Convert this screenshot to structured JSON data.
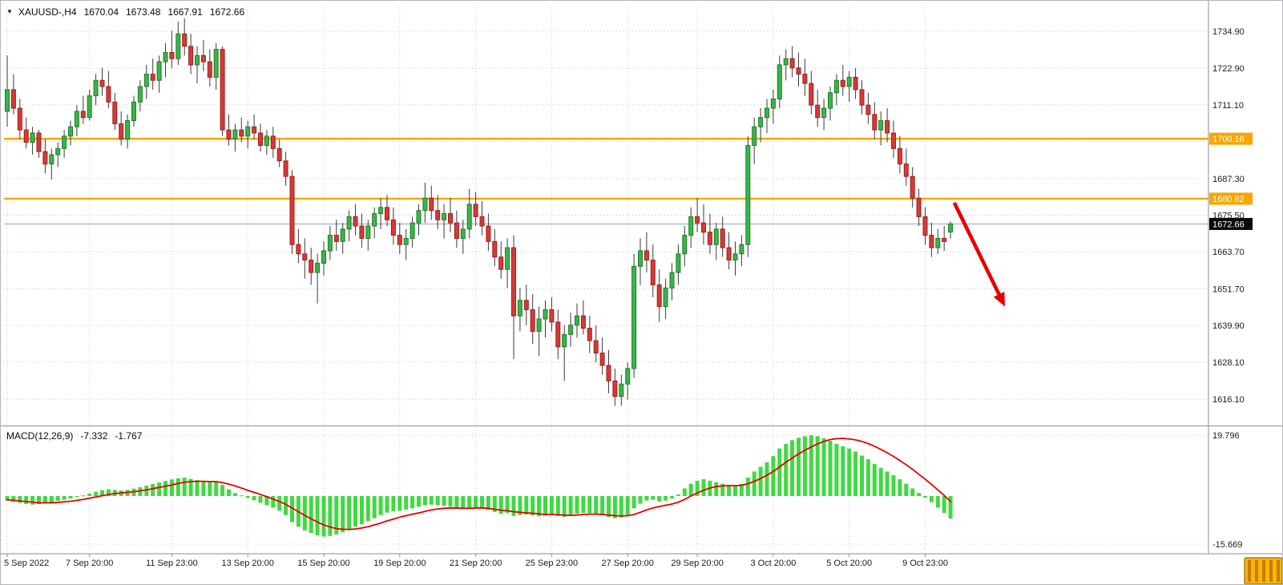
{
  "header": {
    "symbol": "XAUUSD-,H4",
    "open": "1670.04",
    "high": "1673.48",
    "low": "1667.91",
    "close": "1672.66"
  },
  "macd_panel": {
    "title": "MACD(12,26,9)",
    "macd_value": "-7.332",
    "signal_value": "-1.767",
    "axis_labels": [
      {
        "text": "19.796",
        "value": 19.796
      },
      {
        "text": "-15.669",
        "value": -15.669
      }
    ]
  },
  "price_axis": {
    "ticks": [
      {
        "text": "1734.90",
        "value": 1734.9
      },
      {
        "text": "1722.90",
        "value": 1722.9
      },
      {
        "text": "1711.10",
        "value": 1711.1
      },
      {
        "text": "1687.30",
        "value": 1687.3
      },
      {
        "text": "1675.50",
        "value": 1675.5
      },
      {
        "text": "1663.70",
        "value": 1663.7
      },
      {
        "text": "1651.70",
        "value": 1651.7
      },
      {
        "text": "1639.90",
        "value": 1639.9
      },
      {
        "text": "1628.10",
        "value": 1628.1
      },
      {
        "text": "1616.10",
        "value": 1616.1
      }
    ]
  },
  "levels": [
    {
      "label": "1700.16",
      "value": 1700.16,
      "color": "#f7a600"
    },
    {
      "label": "1680.82",
      "value": 1680.82,
      "color": "#f7a600"
    }
  ],
  "bid": {
    "label": "1672.66",
    "value": 1672.66
  },
  "time_axis": [
    {
      "label": "5 Sep 2022",
      "index": 0
    },
    {
      "label": "7 Sep 20:00",
      "index": 13
    },
    {
      "label": "11 Sep 23:00",
      "index": 26
    },
    {
      "label": "13 Sep 20:00",
      "index": 38
    },
    {
      "label": "15 Sep 20:00",
      "index": 50
    },
    {
      "label": "19 Sep 20:00",
      "index": 62
    },
    {
      "label": "21 Sep 20:00",
      "index": 74
    },
    {
      "label": "25 Sep 23:00",
      "index": 86
    },
    {
      "label": "27 Sep 20:00",
      "index": 98
    },
    {
      "label": "29 Sep 20:00",
      "index": 109
    },
    {
      "label": "3 Oct 20:00",
      "index": 121
    },
    {
      "label": "5 Oct 20:00",
      "index": 133
    },
    {
      "label": "9 Oct 23:00",
      "index": 145
    }
  ],
  "arrow": {
    "from": {
      "index": 149.6,
      "price": 1679.5
    },
    "to": {
      "index": 157.6,
      "price": 1646.0
    },
    "color": "#e60000"
  },
  "colors": {
    "bull": "#3bb54a",
    "bull_border": "#1d7c28",
    "bear": "#d63a35",
    "bear_border": "#9c201d",
    "wick": "#3a3a3a",
    "macd_bar": "#41d941",
    "macd_signal": "#e60000",
    "grid": "#c8c8d0",
    "separator": "#8e8e96",
    "axis_text": "#1a1a1a",
    "bid_line": "#9aa3b5",
    "tag_bg": "#0a0a0a",
    "level_orange": "#f7a600",
    "corner_widget": "#ffb400",
    "corner_widget_stripe": "#c07f00"
  },
  "chart_data": {
    "type": "candlestick_with_macd",
    "symbol": "XAUUSD-",
    "timeframe": "H4",
    "title": "XAUUSD-,H4 1670.04 1673.48 1667.91 1672.66",
    "ylim": [
      1607.8,
      1742.6
    ],
    "macd_ylim": [
      -17.8,
      21.9
    ],
    "grid": "dotted",
    "price_gridlines": [
      1734.9,
      1722.9,
      1711.1,
      1699.3,
      1687.3,
      1675.5,
      1663.7,
      1651.7,
      1639.9,
      1628.1,
      1616.1
    ],
    "ohlc": [
      [
        1709,
        1727,
        1704,
        1716
      ],
      [
        1716,
        1721,
        1708,
        1710
      ],
      [
        1710,
        1713,
        1700,
        1703
      ],
      [
        1703,
        1707,
        1697,
        1699
      ],
      [
        1699,
        1704,
        1695,
        1702
      ],
      [
        1702,
        1703,
        1694,
        1696
      ],
      [
        1696,
        1700,
        1689,
        1692
      ],
      [
        1692,
        1697,
        1687,
        1695
      ],
      [
        1695,
        1699,
        1691,
        1697
      ],
      [
        1697,
        1703,
        1694,
        1701
      ],
      [
        1701,
        1706,
        1698,
        1704
      ],
      [
        1704,
        1711,
        1701,
        1709
      ],
      [
        1709,
        1714,
        1705,
        1707
      ],
      [
        1707,
        1716,
        1706,
        1714
      ],
      [
        1714,
        1721,
        1711,
        1719
      ],
      [
        1719,
        1723,
        1714,
        1717
      ],
      [
        1717,
        1722,
        1710,
        1712
      ],
      [
        1712,
        1715,
        1703,
        1705
      ],
      [
        1705,
        1709,
        1698,
        1700
      ],
      [
        1700,
        1708,
        1697,
        1706
      ],
      [
        1706,
        1714,
        1704,
        1712
      ],
      [
        1712,
        1719,
        1709,
        1717
      ],
      [
        1717,
        1724,
        1713,
        1721
      ],
      [
        1721,
        1726,
        1716,
        1719
      ],
      [
        1719,
        1727,
        1715,
        1725
      ],
      [
        1725,
        1731,
        1720,
        1728
      ],
      [
        1728,
        1735,
        1723,
        1726
      ],
      [
        1726,
        1738,
        1724,
        1734
      ],
      [
        1734,
        1739,
        1727,
        1730
      ],
      [
        1730,
        1734,
        1721,
        1724
      ],
      [
        1724,
        1730,
        1718,
        1727
      ],
      [
        1727,
        1732,
        1722,
        1725
      ],
      [
        1725,
        1729,
        1717,
        1720
      ],
      [
        1720,
        1731,
        1716,
        1729
      ],
      [
        1729,
        1730,
        1701,
        1703
      ],
      [
        1703,
        1708,
        1698,
        1700
      ],
      [
        1700,
        1705,
        1696,
        1703
      ],
      [
        1703,
        1707,
        1699,
        1701
      ],
      [
        1701,
        1706,
        1697,
        1704
      ],
      [
        1704,
        1708,
        1700,
        1702
      ],
      [
        1702,
        1705,
        1696,
        1698
      ],
      [
        1698,
        1703,
        1695,
        1701
      ],
      [
        1701,
        1704,
        1694,
        1697
      ],
      [
        1697,
        1700,
        1691,
        1693
      ],
      [
        1693,
        1696,
        1685,
        1688
      ],
      [
        1688,
        1690,
        1663,
        1666
      ],
      [
        1666,
        1671,
        1660,
        1663
      ],
      [
        1663,
        1668,
        1655,
        1661
      ],
      [
        1661,
        1665,
        1653,
        1657
      ],
      [
        1657,
        1663,
        1647,
        1660
      ],
      [
        1660,
        1667,
        1656,
        1664
      ],
      [
        1664,
        1672,
        1661,
        1669
      ],
      [
        1669,
        1674,
        1664,
        1667
      ],
      [
        1667,
        1673,
        1663,
        1671
      ],
      [
        1671,
        1677,
        1667,
        1675
      ],
      [
        1675,
        1679,
        1669,
        1672
      ],
      [
        1672,
        1676,
        1665,
        1668
      ],
      [
        1668,
        1674,
        1664,
        1672
      ],
      [
        1672,
        1678,
        1668,
        1676
      ],
      [
        1676,
        1681,
        1671,
        1678
      ],
      [
        1678,
        1682,
        1672,
        1674
      ],
      [
        1674,
        1678,
        1666,
        1669
      ],
      [
        1669,
        1673,
        1663,
        1666
      ],
      [
        1666,
        1671,
        1661,
        1668
      ],
      [
        1668,
        1675,
        1665,
        1673
      ],
      [
        1673,
        1679,
        1669,
        1677
      ],
      [
        1677,
        1686,
        1673,
        1681
      ],
      [
        1681,
        1685,
        1674,
        1677
      ],
      [
        1677,
        1682,
        1671,
        1674
      ],
      [
        1674,
        1679,
        1668,
        1676
      ],
      [
        1676,
        1681,
        1670,
        1673
      ],
      [
        1673,
        1677,
        1665,
        1668
      ],
      [
        1668,
        1674,
        1663,
        1671
      ],
      [
        1671,
        1684,
        1668,
        1679
      ],
      [
        1679,
        1683,
        1672,
        1675
      ],
      [
        1675,
        1680,
        1669,
        1672
      ],
      [
        1672,
        1676,
        1664,
        1667
      ],
      [
        1667,
        1671,
        1659,
        1662
      ],
      [
        1662,
        1667,
        1655,
        1658
      ],
      [
        1658,
        1668,
        1652,
        1665
      ],
      [
        1665,
        1669,
        1629,
        1643
      ],
      [
        1643,
        1652,
        1638,
        1648
      ],
      [
        1648,
        1653,
        1640,
        1645
      ],
      [
        1645,
        1650,
        1634,
        1638
      ],
      [
        1638,
        1646,
        1630,
        1642
      ],
      [
        1642,
        1648,
        1636,
        1645
      ],
      [
        1645,
        1649,
        1638,
        1641
      ],
      [
        1641,
        1645,
        1629,
        1633
      ],
      [
        1633,
        1640,
        1622,
        1637
      ],
      [
        1637,
        1644,
        1633,
        1640
      ],
      [
        1640,
        1647,
        1636,
        1643
      ],
      [
        1643,
        1648,
        1637,
        1639
      ],
      [
        1639,
        1643,
        1631,
        1635
      ],
      [
        1635,
        1640,
        1628,
        1631
      ],
      [
        1631,
        1636,
        1624,
        1627
      ],
      [
        1627,
        1632,
        1618,
        1622
      ],
      [
        1622,
        1626,
        1614,
        1617
      ],
      [
        1617,
        1624,
        1614,
        1621
      ],
      [
        1621,
        1628,
        1616,
        1626
      ],
      [
        1626,
        1663,
        1623,
        1659
      ],
      [
        1659,
        1668,
        1653,
        1664
      ],
      [
        1664,
        1670,
        1657,
        1661
      ],
      [
        1661,
        1666,
        1649,
        1653
      ],
      [
        1653,
        1658,
        1641,
        1646
      ],
      [
        1646,
        1655,
        1642,
        1652
      ],
      [
        1652,
        1660,
        1648,
        1657
      ],
      [
        1657,
        1666,
        1653,
        1663
      ],
      [
        1663,
        1672,
        1659,
        1669
      ],
      [
        1669,
        1678,
        1665,
        1675
      ],
      [
        1675,
        1681,
        1670,
        1673
      ],
      [
        1673,
        1679,
        1666,
        1670
      ],
      [
        1670,
        1676,
        1663,
        1666
      ],
      [
        1666,
        1673,
        1661,
        1671
      ],
      [
        1671,
        1675,
        1662,
        1665
      ],
      [
        1665,
        1670,
        1658,
        1661
      ],
      [
        1661,
        1667,
        1656,
        1663
      ],
      [
        1663,
        1669,
        1659,
        1666
      ],
      [
        1666,
        1701,
        1662,
        1698
      ],
      [
        1698,
        1707,
        1692,
        1704
      ],
      [
        1704,
        1710,
        1699,
        1707
      ],
      [
        1707,
        1713,
        1702,
        1710
      ],
      [
        1710,
        1716,
        1705,
        1713
      ],
      [
        1713,
        1727,
        1710,
        1724
      ],
      [
        1724,
        1729,
        1719,
        1726
      ],
      [
        1726,
        1730,
        1720,
        1723
      ],
      [
        1723,
        1728,
        1717,
        1721
      ],
      [
        1721,
        1726,
        1714,
        1718
      ],
      [
        1718,
        1722,
        1708,
        1711
      ],
      [
        1711,
        1716,
        1704,
        1707
      ],
      [
        1707,
        1713,
        1703,
        1710
      ],
      [
        1710,
        1717,
        1706,
        1715
      ],
      [
        1715,
        1721,
        1711,
        1719
      ],
      [
        1719,
        1724,
        1714,
        1717
      ],
      [
        1717,
        1722,
        1712,
        1720
      ],
      [
        1720,
        1723,
        1713,
        1716
      ],
      [
        1716,
        1719,
        1708,
        1711
      ],
      [
        1711,
        1715,
        1705,
        1708
      ],
      [
        1708,
        1712,
        1700,
        1703
      ],
      [
        1703,
        1709,
        1698,
        1706
      ],
      [
        1706,
        1710,
        1699,
        1702
      ],
      [
        1702,
        1706,
        1694,
        1697
      ],
      [
        1697,
        1701,
        1689,
        1692
      ],
      [
        1692,
        1697,
        1685,
        1688
      ],
      [
        1688,
        1691,
        1678,
        1681
      ],
      [
        1681,
        1684,
        1672,
        1675
      ],
      [
        1675,
        1678,
        1666,
        1669
      ],
      [
        1669,
        1673,
        1662,
        1665
      ],
      [
        1665,
        1671,
        1663,
        1668
      ],
      [
        1668,
        1672,
        1664,
        1667
      ],
      [
        1670.04,
        1673.48,
        1667.91,
        1672.66
      ]
    ],
    "macd_histogram": [
      -1.5,
      -1.8,
      -2.2,
      -2.6,
      -2.8,
      -2.6,
      -2.4,
      -2.0,
      -1.6,
      -1.2,
      -0.8,
      -0.3,
      0.2,
      0.8,
      1.4,
      1.9,
      2.2,
      2.0,
      1.8,
      2.0,
      2.4,
      2.9,
      3.4,
      3.9,
      4.4,
      4.9,
      5.4,
      5.8,
      6.0,
      5.6,
      5.2,
      4.8,
      4.5,
      4.8,
      3.6,
      2.2,
      1.0,
      0.2,
      -0.6,
      -1.4,
      -2.2,
      -3.0,
      -3.8,
      -4.8,
      -6.2,
      -8.5,
      -10.0,
      -11.2,
      -12.0,
      -12.8,
      -13.2,
      -13.0,
      -12.5,
      -11.8,
      -11.0,
      -10.0,
      -9.2,
      -8.2,
      -7.2,
      -6.2,
      -5.4,
      -5.0,
      -4.8,
      -4.4,
      -4.0,
      -3.5,
      -3.0,
      -2.8,
      -3.0,
      -3.2,
      -3.5,
      -3.8,
      -4.2,
      -4.0,
      -3.8,
      -4.0,
      -4.5,
      -5.2,
      -5.8,
      -5.5,
      -6.5,
      -6.2,
      -6.0,
      -6.3,
      -6.6,
      -6.4,
      -6.2,
      -6.5,
      -6.8,
      -6.3,
      -5.8,
      -5.5,
      -5.6,
      -6.0,
      -6.3,
      -6.8,
      -7.2,
      -7.0,
      -6.2,
      -4.0,
      -2.5,
      -1.5,
      -1.2,
      -1.8,
      -1.5,
      -0.8,
      0.5,
      2.5,
      4.0,
      5.0,
      5.5,
      5.0,
      4.5,
      4.0,
      3.5,
      3.2,
      4.0,
      6.0,
      8.0,
      9.5,
      11.0,
      13.0,
      15.5,
      17.0,
      18.2,
      19.0,
      19.5,
      19.8,
      19.5,
      18.8,
      18.0,
      17.0,
      16.2,
      15.5,
      14.5,
      13.2,
      12.0,
      10.5,
      9.2,
      8.0,
      6.8,
      5.5,
      4.0,
      2.5,
      1.0,
      -0.5,
      -2.0,
      -3.8,
      -5.5,
      -7.332
    ],
    "macd_signal": [
      -1.2,
      -1.4,
      -1.6,
      -1.8,
      -2.0,
      -2.2,
      -2.2,
      -2.2,
      -2.1,
      -1.9,
      -1.7,
      -1.4,
      -1.1,
      -0.7,
      -0.3,
      0.1,
      0.5,
      0.8,
      1.0,
      1.2,
      1.4,
      1.7,
      2.0,
      2.4,
      2.8,
      3.2,
      3.6,
      4.1,
      4.5,
      4.7,
      4.8,
      4.8,
      4.7,
      4.7,
      4.4,
      3.9,
      3.3,
      2.6,
      1.9,
      1.2,
      0.5,
      -0.2,
      -1.0,
      -1.8,
      -2.7,
      -3.9,
      -5.1,
      -6.3,
      -7.4,
      -8.5,
      -9.4,
      -10.1,
      -10.6,
      -10.8,
      -10.9,
      -10.7,
      -10.4,
      -10.0,
      -9.4,
      -8.8,
      -8.1,
      -7.5,
      -6.9,
      -6.4,
      -5.9,
      -5.5,
      -5.0,
      -4.5,
      -4.2,
      -4.0,
      -3.9,
      -3.9,
      -4.0,
      -4.0,
      -3.9,
      -3.9,
      -4.0,
      -4.3,
      -4.6,
      -4.8,
      -5.1,
      -5.3,
      -5.5,
      -5.6,
      -5.8,
      -6.0,
      -6.0,
      -6.1,
      -6.2,
      -6.3,
      -6.2,
      -6.0,
      -5.9,
      -5.9,
      -6.0,
      -6.2,
      -6.4,
      -6.5,
      -6.4,
      -6.0,
      -5.3,
      -4.5,
      -3.9,
      -3.4,
      -3.0,
      -2.6,
      -2.0,
      -1.1,
      0.0,
      1.0,
      1.9,
      2.6,
      3.1,
      3.3,
      3.4,
      3.4,
      3.5,
      4.0,
      4.8,
      5.7,
      6.8,
      8.0,
      9.5,
      11.0,
      12.4,
      13.7,
      14.9,
      16.0,
      17.0,
      17.8,
      18.4,
      18.7,
      18.8,
      18.6,
      18.3,
      17.8,
      17.1,
      16.2,
      15.2,
      14.1,
      12.9,
      11.6,
      10.2,
      8.7,
      7.1,
      5.5,
      3.8,
      2.0,
      0.2,
      -1.767
    ]
  }
}
